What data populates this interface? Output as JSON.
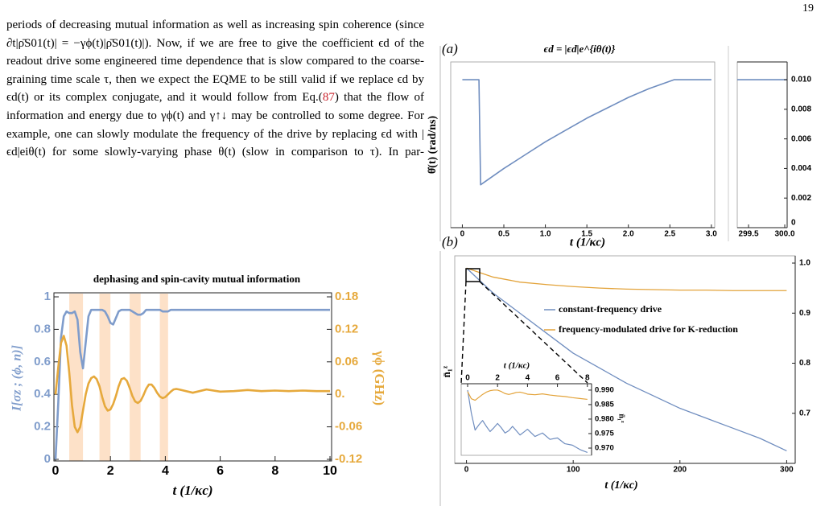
{
  "page_number": "19",
  "paragraph": {
    "text_before": "periods of decreasing mutual information as well as increasing spin coherence (since ∂t|ρ̄S01(t)| = −γϕ(t)|ρ̄S01(t)|). Now, if we are free to give the coefficient ϵd of the readout drive some engineered time dependence that is slow compared to the coarse-graining time scale τ, then we expect the EQME to be still valid if we replace ϵd by ϵd(t) or its complex conjugate, and it would follow from Eq.(",
    "reference": "87",
    "text_after": ") that the flow of information and energy due to γϕ(t) and γ↑↓ may be controlled to some degree. For example, one can slowly modulate the frequency of the drive by replacing ϵd with |ϵd|eiθ(t) for some slowly-varying phase θ(t) (slow in comparison to τ). In par-"
  },
  "chart_data": [
    {
      "type": "line",
      "title": "dephasing and spin-cavity mutual information",
      "xlabel": "t (1/κc)",
      "ylabel": "I[σz ; (ϕ, n)]",
      "y2label": "γϕ (GHz)",
      "xlim": [
        0,
        10
      ],
      "xticks": [
        0,
        2,
        4,
        6,
        8,
        10
      ],
      "ylim": [
        0,
        1
      ],
      "yticks": [
        0,
        0.2,
        0.4,
        0.6,
        0.8,
        1
      ],
      "y2lim": [
        -0.12,
        0.18
      ],
      "y2ticks": [
        -0.12,
        -0.06,
        {
          "value": 0,
          "label": "0."
        },
        0.06,
        0.12,
        0.18
      ],
      "shaded_regions": [
        [
          0.5,
          1.0
        ],
        [
          1.6,
          2.0
        ],
        [
          2.7,
          3.1
        ],
        [
          3.8,
          4.1
        ]
      ],
      "shade_color": "#fde1c8",
      "x": [
        0,
        0.1,
        0.2,
        0.3,
        0.4,
        0.5,
        0.6,
        0.7,
        0.8,
        0.9,
        1.0,
        1.1,
        1.2,
        1.3,
        1.4,
        1.5,
        1.6,
        1.7,
        1.8,
        1.9,
        2.0,
        2.1,
        2.2,
        2.3,
        2.4,
        2.5,
        2.6,
        2.7,
        2.8,
        2.9,
        3.0,
        3.1,
        3.2,
        3.3,
        3.4,
        3.5,
        3.6,
        3.7,
        3.8,
        3.9,
        4.0,
        4.1,
        4.2,
        4.3,
        4.4,
        4.5,
        5,
        5.5,
        6,
        6.5,
        7,
        7.5,
        8,
        8.5,
        9,
        9.5,
        10
      ],
      "series": [
        {
          "name": "mutual information",
          "color": "#7f9ccb",
          "axis": "y",
          "values": [
            0,
            0.35,
            0.75,
            0.88,
            0.91,
            0.9,
            0.9,
            0.91,
            0.86,
            0.66,
            0.56,
            0.72,
            0.88,
            0.92,
            0.92,
            0.92,
            0.92,
            0.92,
            0.91,
            0.88,
            0.84,
            0.83,
            0.87,
            0.91,
            0.92,
            0.92,
            0.92,
            0.92,
            0.91,
            0.9,
            0.89,
            0.89,
            0.9,
            0.92,
            0.92,
            0.92,
            0.92,
            0.92,
            0.92,
            0.91,
            0.91,
            0.91,
            0.92,
            0.92,
            0.92,
            0.92,
            0.92,
            0.92,
            0.92,
            0.92,
            0.92,
            0.92,
            0.92,
            0.92,
            0.92,
            0.92,
            0.92
          ]
        },
        {
          "name": "dephasing rate",
          "color": "#e6a93c",
          "axis": "y2",
          "values": [
            0,
            0.05,
            0.095,
            0.108,
            0.09,
            0.04,
            -0.02,
            -0.06,
            -0.07,
            -0.06,
            -0.03,
            0,
            0.02,
            0.03,
            0.033,
            0.028,
            0.015,
            -0.005,
            -0.022,
            -0.03,
            -0.028,
            -0.018,
            -0.003,
            0.015,
            0.028,
            0.03,
            0.025,
            0.012,
            -0.003,
            -0.013,
            -0.016,
            -0.012,
            -0.002,
            0.01,
            0.018,
            0.018,
            0.012,
            0.003,
            -0.004,
            -0.007,
            -0.005,
            0,
            0.005,
            0.009,
            0.01,
            0.009,
            0.003,
            0.009,
            0.005,
            0.006,
            0.008,
            0.006,
            0.007,
            0.006,
            0.007,
            0.006,
            0.006
          ]
        }
      ]
    },
    {
      "type": "line",
      "panel_label": "(a)",
      "title": "ϵd = |ϵd|e^{iθ(t)}",
      "xlabel": "t (1/κc)",
      "ylabel": "θ̇(t) (rad/ns)",
      "color": "#6f8dbf",
      "ylim": [
        0,
        0.0112
      ],
      "yticks": [
        0,
        0.002,
        0.004,
        0.006,
        0.008,
        {
          "value": 0.01,
          "label": "0.010"
        }
      ],
      "segments": [
        {
          "xlim": [
            -0.14,
            3.04
          ],
          "xticks": [
            0,
            0.5,
            {
              "value": 1,
              "label": "1.0"
            },
            1.5,
            {
              "value": 2,
              "label": "2.0"
            },
            2.5,
            {
              "value": 3,
              "label": "3.0"
            }
          ],
          "x": [
            0,
            0.2,
            0.22,
            0.5,
            0.75,
            1.0,
            1.25,
            1.5,
            1.75,
            2.0,
            2.25,
            2.55,
            3.0
          ],
          "values": [
            0.01,
            0.01,
            0.0029,
            0.004,
            0.0049,
            0.0058,
            0.0066,
            0.0074,
            0.0081,
            0.0088,
            0.0094,
            0.01,
            0.01
          ]
        },
        {
          "xlim": [
            299.344,
            300.033
          ],
          "xticks": [
            299.5,
            {
              "value": 300,
              "label": "300.0"
            }
          ],
          "x": [
            299.344,
            300.033
          ],
          "values": [
            0.01,
            0.01
          ]
        }
      ]
    },
    {
      "type": "line",
      "panel_label": "(b)",
      "xlabel": "t (1/κc)",
      "ylabel": "n̄₁ᶻ",
      "xlim": [
        -11,
        308
      ],
      "xticks": [
        0,
        100,
        200,
        300
      ],
      "ylim": [
        0.6,
        1.0145
      ],
      "yticks": [
        0.7,
        0.8,
        0.9,
        {
          "value": 1,
          "label": "1.0"
        }
      ],
      "x": [
        0,
        25,
        50,
        75,
        100,
        125,
        150,
        175,
        200,
        225,
        250,
        275,
        300
      ],
      "series": [
        {
          "name": "constant-frequency drive",
          "color": "#6f8dbf",
          "values": [
            0.99,
            0.94,
            0.9,
            0.86,
            0.82,
            0.79,
            0.76,
            0.735,
            0.71,
            0.69,
            0.67,
            0.65,
            0.625
          ]
        },
        {
          "name": "frequency-modulated drive for K-reduction",
          "color": "#e3a33a",
          "values": [
            0.99,
            0.972,
            0.962,
            0.957,
            0.953,
            0.95,
            0.948,
            0.947,
            0.946,
            0.946,
            0.945,
            0.945,
            0.945
          ]
        }
      ],
      "inset": {
        "xlabel": "t (1/κc)",
        "ylabel": "n̄₁ᶻ",
        "xlim": [
          -0.43,
          8.28
        ],
        "xticks": [
          0,
          2,
          4,
          6,
          8
        ],
        "ylim": [
          0.9675,
          0.9922
        ],
        "yticks": [
          {
            "value": 0.97,
            "label": "0.970"
          },
          0.975,
          {
            "value": 0.98,
            "label": "0.980"
          },
          0.985,
          {
            "value": 0.99,
            "label": "0.990"
          }
        ],
        "x": [
          0,
          0.25,
          0.5,
          0.75,
          1,
          1.25,
          1.5,
          1.75,
          2,
          2.25,
          2.5,
          2.75,
          3,
          3.25,
          3.5,
          3.75,
          4,
          4.5,
          5,
          5.5,
          6,
          6.5,
          7,
          7.5,
          8
        ],
        "series": [
          {
            "values": [
              0.99,
              0.982,
              0.9762,
              0.978,
              0.9795,
              0.9775,
              0.9757,
              0.977,
              0.9785,
              0.977,
              0.9752,
              0.976,
              0.9775,
              0.976,
              0.9745,
              0.9755,
              0.9765,
              0.974,
              0.9752,
              0.973,
              0.9735,
              0.9715,
              0.971,
              0.9695,
              0.9685
            ]
          },
          {
            "values": [
              0.9895,
              0.987,
              0.9865,
              0.9875,
              0.9885,
              0.9893,
              0.9898,
              0.99,
              0.99,
              0.9895,
              0.9888,
              0.9885,
              0.9888,
              0.9892,
              0.9893,
              0.989,
              0.9886,
              0.9884,
              0.9887,
              0.9883,
              0.988,
              0.9878,
              0.9874,
              0.9871,
              0.9868
            ]
          }
        ]
      }
    }
  ]
}
